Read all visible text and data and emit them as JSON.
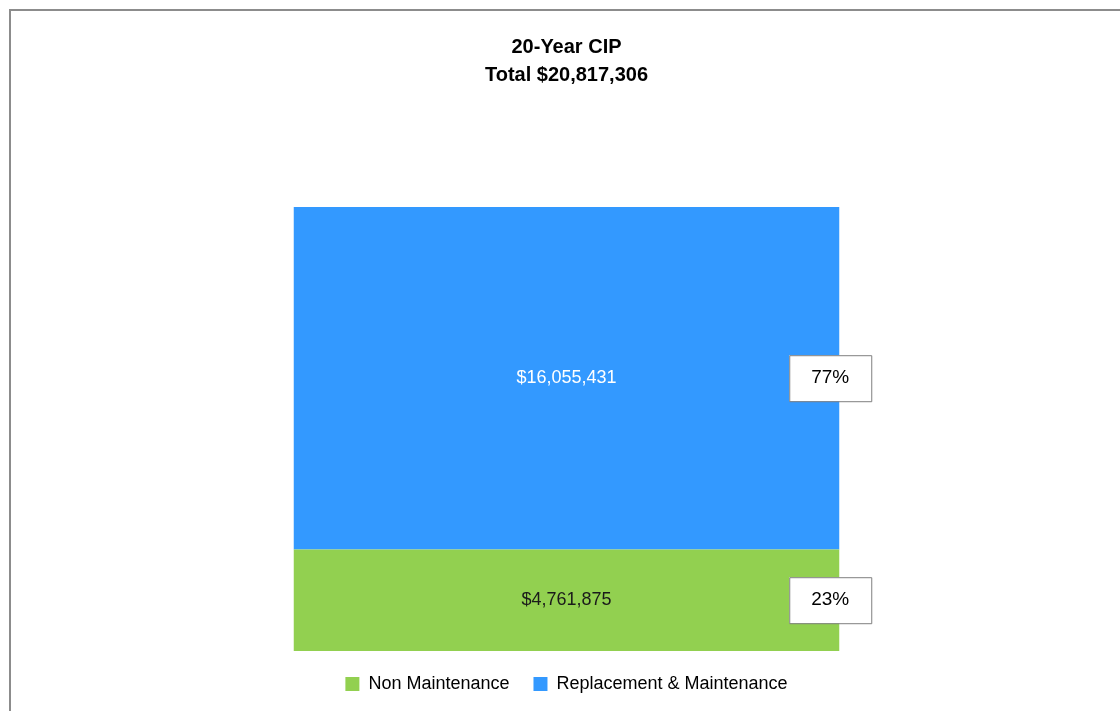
{
  "chart_data": {
    "type": "bar",
    "title": "20-Year CIP",
    "subtitle": "Total $20,817,306",
    "categories": [
      null
    ],
    "stacked": true,
    "series": [
      {
        "name": "Non Maintenance",
        "color": "#92d050",
        "values": [
          4761875
        ],
        "value_labels": [
          "$4,761,875"
        ]
      },
      {
        "name": "Replacement & Maintenance",
        "color": "#3399ff",
        "values": [
          16055431
        ],
        "value_labels": [
          "$16,055,431"
        ]
      }
    ],
    "annotations": [
      "23%",
      "77%"
    ],
    "legend": "bottom"
  }
}
